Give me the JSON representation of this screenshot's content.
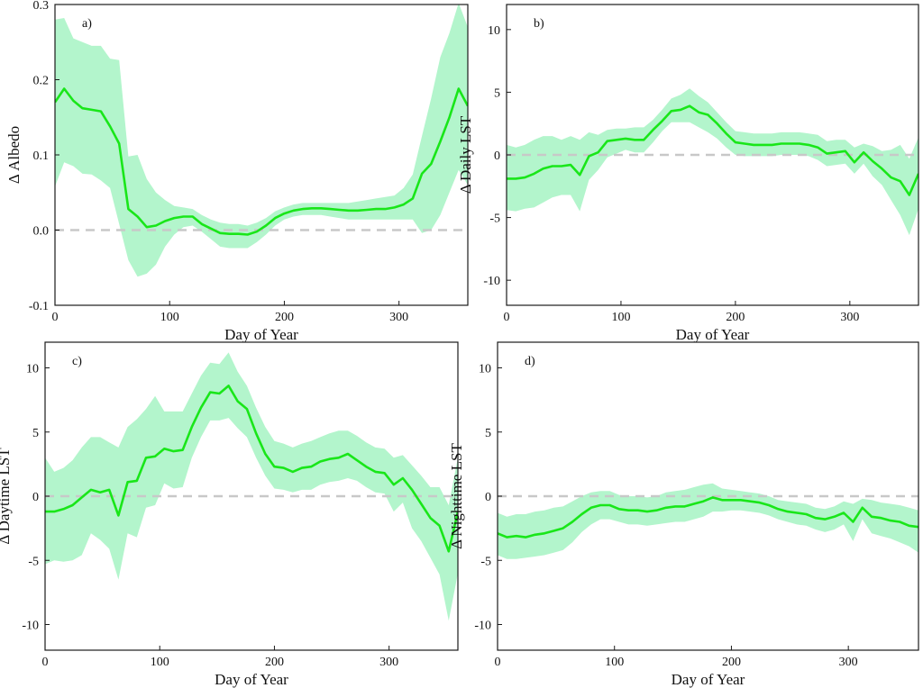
{
  "colors": {
    "line": "#19e619",
    "band": "#b3f5cc",
    "zero_line": "#c8c8c8",
    "axis": "#1a1a1a"
  },
  "chart_data": [
    {
      "type": "line",
      "panel_label": "a)",
      "xlabel": "Day of Year",
      "ylabel": "Δ Albedo",
      "xlim": [
        0,
        360
      ],
      "ylim": [
        -0.1,
        0.3
      ],
      "xticks": [
        0,
        100,
        200,
        300
      ],
      "yticks": [
        -0.1,
        0.0,
        0.1,
        0.2,
        0.3
      ],
      "ytick_labels": [
        "-0.1",
        "0.0",
        "0.1",
        "0.2",
        "0.3"
      ],
      "zero_line": 0,
      "series": [
        {
          "x": [
            0,
            8,
            16,
            24,
            32,
            40,
            48,
            56,
            64,
            72,
            80,
            88,
            96,
            104,
            112,
            120,
            128,
            136,
            144,
            152,
            160,
            168,
            176,
            184,
            192,
            200,
            208,
            216,
            224,
            232,
            240,
            248,
            256,
            264,
            272,
            280,
            288,
            296,
            304,
            312,
            320,
            328,
            336,
            344,
            352,
            360
          ],
          "mean": [
            0.17,
            0.188,
            0.172,
            0.162,
            0.16,
            0.158,
            0.138,
            0.115,
            0.028,
            0.018,
            0.004,
            0.006,
            0.012,
            0.016,
            0.018,
            0.018,
            0.008,
            0.002,
            -0.004,
            -0.005,
            -0.005,
            -0.006,
            -0.002,
            0.006,
            0.016,
            0.022,
            0.026,
            0.028,
            0.029,
            0.029,
            0.028,
            0.027,
            0.026,
            0.026,
            0.027,
            0.028,
            0.028,
            0.03,
            0.034,
            0.042,
            0.075,
            0.088,
            0.118,
            0.15,
            0.188,
            0.165
          ],
          "upper": [
            0.28,
            0.282,
            0.255,
            0.25,
            0.245,
            0.245,
            0.228,
            0.226,
            0.098,
            0.1,
            0.068,
            0.05,
            0.04,
            0.032,
            0.03,
            0.028,
            0.02,
            0.014,
            0.01,
            0.008,
            0.008,
            0.006,
            0.01,
            0.016,
            0.025,
            0.03,
            0.034,
            0.036,
            0.036,
            0.036,
            0.036,
            0.036,
            0.036,
            0.038,
            0.04,
            0.042,
            0.044,
            0.046,
            0.056,
            0.074,
            0.125,
            0.175,
            0.23,
            0.262,
            0.302,
            0.27
          ],
          "lower": [
            0.058,
            0.09,
            0.085,
            0.075,
            0.074,
            0.066,
            0.056,
            0.008,
            -0.04,
            -0.062,
            -0.058,
            -0.046,
            -0.022,
            -0.006,
            0.004,
            0.006,
            -0.002,
            -0.012,
            -0.022,
            -0.024,
            -0.024,
            -0.024,
            -0.016,
            -0.006,
            0.006,
            0.014,
            0.018,
            0.02,
            0.02,
            0.02,
            0.018,
            0.016,
            0.014,
            0.014,
            0.014,
            0.014,
            0.014,
            0.014,
            0.014,
            0.014,
            -0.004,
            0.0,
            0.02,
            0.05,
            0.08,
            0.06
          ]
        }
      ]
    },
    {
      "type": "line",
      "panel_label": "b)",
      "xlabel": "Day of Year",
      "ylabel": "Δ Daily LST",
      "xlim": [
        0,
        360
      ],
      "ylim": [
        -12,
        12
      ],
      "xticks": [
        0,
        100,
        200,
        300
      ],
      "yticks": [
        -10,
        -5,
        0,
        5,
        10
      ],
      "ytick_labels": [
        "-10",
        "-5",
        "0",
        "5",
        "10"
      ],
      "zero_line": 0,
      "series": [
        {
          "x": [
            0,
            8,
            16,
            24,
            32,
            40,
            48,
            56,
            64,
            72,
            80,
            88,
            96,
            104,
            112,
            120,
            128,
            136,
            144,
            152,
            160,
            168,
            176,
            184,
            192,
            200,
            208,
            216,
            224,
            232,
            240,
            248,
            256,
            264,
            272,
            280,
            288,
            296,
            304,
            312,
            320,
            328,
            336,
            344,
            352,
            360
          ],
          "mean": [
            -1.9,
            -1.9,
            -1.8,
            -1.5,
            -1.1,
            -0.9,
            -0.9,
            -0.8,
            -1.6,
            -0.1,
            0.2,
            1.1,
            1.2,
            1.3,
            1.2,
            1.2,
            2.0,
            2.7,
            3.5,
            3.6,
            3.9,
            3.4,
            3.2,
            2.5,
            1.7,
            1.0,
            0.9,
            0.8,
            0.8,
            0.8,
            0.9,
            0.9,
            0.9,
            0.8,
            0.6,
            0.1,
            0.2,
            0.3,
            -0.6,
            0.2,
            -0.5,
            -1.1,
            -1.8,
            -2.1,
            -3.2,
            -1.5
          ],
          "upper": [
            0.8,
            0.6,
            0.8,
            1.2,
            1.5,
            1.5,
            1.2,
            1.5,
            1.2,
            1.8,
            1.6,
            2.0,
            2.1,
            2.1,
            2.2,
            2.2,
            2.8,
            3.6,
            4.5,
            4.8,
            5.3,
            4.7,
            4.2,
            3.4,
            2.6,
            1.9,
            1.8,
            1.7,
            1.7,
            1.7,
            1.8,
            1.8,
            1.8,
            1.7,
            1.6,
            1.1,
            1.2,
            1.2,
            0.6,
            0.9,
            0.7,
            0.3,
            0.4,
            0.8,
            -0.3,
            1.4
          ],
          "lower": [
            -4.4,
            -4.5,
            -4.3,
            -4.2,
            -3.8,
            -3.4,
            -3.2,
            -3.2,
            -4.5,
            -2.0,
            -1.2,
            -0.2,
            0.1,
            0.4,
            0.2,
            0.2,
            1.0,
            1.9,
            2.6,
            2.6,
            2.6,
            2.2,
            1.8,
            1.3,
            0.6,
            0.0,
            -0.1,
            -0.1,
            -0.1,
            -0.1,
            0.0,
            0.0,
            0.0,
            -0.1,
            -0.4,
            -0.9,
            -0.8,
            -0.7,
            -1.5,
            -0.7,
            -1.7,
            -2.4,
            -3.6,
            -4.8,
            -6.4,
            -4.3
          ]
        }
      ]
    },
    {
      "type": "line",
      "panel_label": "c)",
      "xlabel": "Day of Year",
      "ylabel": "Δ Daytime LST",
      "xlim": [
        0,
        360
      ],
      "ylim": [
        -12,
        12
      ],
      "xticks": [
        0,
        100,
        200,
        300
      ],
      "yticks": [
        -10,
        -5,
        0,
        5,
        10
      ],
      "ytick_labels": [
        "-10",
        "-5",
        "0",
        "5",
        "10"
      ],
      "zero_line": 0,
      "series": [
        {
          "x": [
            0,
            8,
            16,
            24,
            32,
            40,
            48,
            56,
            64,
            72,
            80,
            88,
            96,
            104,
            112,
            120,
            128,
            136,
            144,
            152,
            160,
            168,
            176,
            184,
            192,
            200,
            208,
            216,
            224,
            232,
            240,
            248,
            256,
            264,
            272,
            280,
            288,
            296,
            304,
            312,
            320,
            328,
            336,
            344,
            352,
            360
          ],
          "mean": [
            -1.2,
            -1.2,
            -1.0,
            -0.7,
            -0.1,
            0.5,
            0.3,
            0.5,
            -1.5,
            1.1,
            1.2,
            3.0,
            3.1,
            3.7,
            3.5,
            3.6,
            5.4,
            6.9,
            8.1,
            8.0,
            8.6,
            7.4,
            6.8,
            4.9,
            3.3,
            2.3,
            2.2,
            1.9,
            2.2,
            2.3,
            2.7,
            2.9,
            3.0,
            3.3,
            2.8,
            2.3,
            1.9,
            1.8,
            0.9,
            1.4,
            0.5,
            -0.6,
            -1.7,
            -2.3,
            -4.3,
            -1.2
          ],
          "upper": [
            3.0,
            1.9,
            2.2,
            2.8,
            3.8,
            4.6,
            4.6,
            4.2,
            3.8,
            5.4,
            6.0,
            6.8,
            7.8,
            6.6,
            6.6,
            6.6,
            8.0,
            9.4,
            10.4,
            10.3,
            11.2,
            9.7,
            8.6,
            6.9,
            5.4,
            4.3,
            4.1,
            3.8,
            4.1,
            4.3,
            4.6,
            4.9,
            5.1,
            5.1,
            4.7,
            4.2,
            3.8,
            3.7,
            3.0,
            3.2,
            2.4,
            1.6,
            0.7,
            0.7,
            -0.7,
            3.0
          ],
          "lower": [
            -5.3,
            -5.0,
            -5.1,
            -5.0,
            -4.6,
            -2.9,
            -3.4,
            -4.1,
            -6.5,
            -2.9,
            -3.2,
            -0.9,
            -0.7,
            1.0,
            0.6,
            0.7,
            3.0,
            4.6,
            5.9,
            5.9,
            6.1,
            5.3,
            4.6,
            3.0,
            1.6,
            0.6,
            0.5,
            0.3,
            0.5,
            0.5,
            0.9,
            1.1,
            1.2,
            1.4,
            1.2,
            0.7,
            0.3,
            0.2,
            -1.2,
            -0.5,
            -2.5,
            -3.5,
            -4.8,
            -6.1,
            -9.7,
            -6.0
          ]
        }
      ]
    },
    {
      "type": "line",
      "panel_label": "d)",
      "xlabel": "Day of Year",
      "ylabel": "Δ Nighttime LST",
      "xlim": [
        0,
        360
      ],
      "ylim": [
        -12,
        12
      ],
      "xticks": [
        0,
        100,
        200,
        300
      ],
      "yticks": [
        -10,
        -5,
        0,
        5,
        10
      ],
      "ytick_labels": [
        "-10",
        "-5",
        "0",
        "5",
        "10"
      ],
      "zero_line": 0,
      "series": [
        {
          "x": [
            0,
            8,
            16,
            24,
            32,
            40,
            48,
            56,
            64,
            72,
            80,
            88,
            96,
            104,
            112,
            120,
            128,
            136,
            144,
            152,
            160,
            168,
            176,
            184,
            192,
            200,
            208,
            216,
            224,
            232,
            240,
            248,
            256,
            264,
            272,
            280,
            288,
            296,
            304,
            312,
            320,
            328,
            336,
            344,
            352,
            360
          ],
          "mean": [
            -2.9,
            -3.2,
            -3.1,
            -3.2,
            -3.0,
            -2.9,
            -2.7,
            -2.5,
            -2.0,
            -1.4,
            -0.9,
            -0.7,
            -0.7,
            -1.0,
            -1.1,
            -1.1,
            -1.2,
            -1.1,
            -0.9,
            -0.8,
            -0.8,
            -0.6,
            -0.4,
            -0.1,
            -0.3,
            -0.3,
            -0.3,
            -0.4,
            -0.5,
            -0.7,
            -1.0,
            -1.2,
            -1.3,
            -1.4,
            -1.7,
            -1.8,
            -1.6,
            -1.3,
            -2.0,
            -0.9,
            -1.6,
            -1.7,
            -1.9,
            -2.0,
            -2.3,
            -2.4
          ],
          "upper": [
            -1.3,
            -1.6,
            -1.4,
            -1.4,
            -1.2,
            -1.1,
            -0.9,
            -0.8,
            -0.4,
            0.0,
            0.3,
            0.4,
            0.4,
            0.1,
            0.0,
            0.0,
            -0.1,
            0.0,
            0.3,
            0.4,
            0.5,
            0.7,
            0.9,
            1.0,
            0.6,
            0.5,
            0.4,
            0.3,
            0.2,
            0.0,
            -0.3,
            -0.4,
            -0.5,
            -0.6,
            -0.9,
            -1.0,
            -0.8,
            -0.4,
            -0.6,
            -0.2,
            -0.3,
            -0.5,
            -0.6,
            -0.7,
            -0.9,
            -1.1
          ],
          "lower": [
            -4.6,
            -4.9,
            -4.9,
            -4.8,
            -4.7,
            -4.6,
            -4.4,
            -4.2,
            -3.6,
            -2.8,
            -2.2,
            -1.8,
            -1.8,
            -2.0,
            -2.2,
            -2.2,
            -2.3,
            -2.2,
            -2.1,
            -2.0,
            -2.0,
            -1.8,
            -1.6,
            -1.2,
            -1.2,
            -1.1,
            -1.1,
            -1.2,
            -1.3,
            -1.5,
            -1.8,
            -2.0,
            -2.2,
            -2.3,
            -2.6,
            -2.8,
            -2.6,
            -2.2,
            -3.5,
            -1.8,
            -2.9,
            -3.1,
            -3.3,
            -3.6,
            -3.9,
            -4.4
          ]
        }
      ]
    }
  ]
}
